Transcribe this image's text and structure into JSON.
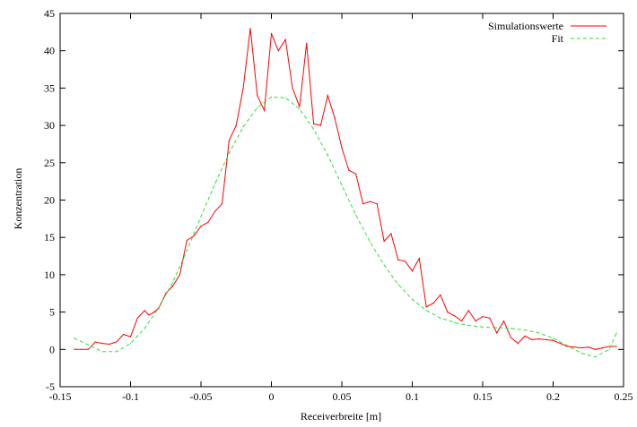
{
  "chart_data": {
    "type": "line",
    "title": "",
    "xlabel": "Receiverbreite [m]",
    "ylabel": "Konzentration",
    "xlim": [
      -0.15,
      0.25
    ],
    "ylim": [
      -5,
      45
    ],
    "xticks": [
      -0.15,
      -0.1,
      -0.05,
      0,
      0.05,
      0.1,
      0.15,
      0.2,
      0.25
    ],
    "xtick_labels": [
      "-0.15",
      "-0.1",
      "-0.05",
      "0",
      "0.05",
      "0.1",
      "0.15",
      "0.2",
      "0.25"
    ],
    "yticks": [
      -5,
      0,
      5,
      10,
      15,
      20,
      25,
      30,
      35,
      40,
      45
    ],
    "ytick_labels": [
      "-5",
      "0",
      "5",
      "10",
      "15",
      "20",
      "25",
      "30",
      "35",
      "40",
      "45"
    ],
    "grid": false,
    "legend_position": "top-right",
    "series": [
      {
        "name": "Simulationswerte",
        "color": "#ff0000",
        "style": "solid",
        "x": [
          -0.14,
          -0.135,
          -0.13,
          -0.125,
          -0.12,
          -0.115,
          -0.11,
          -0.105,
          -0.1,
          -0.095,
          -0.09,
          -0.087,
          -0.084,
          -0.08,
          -0.075,
          -0.07,
          -0.065,
          -0.06,
          -0.055,
          -0.05,
          -0.045,
          -0.04,
          -0.035,
          -0.03,
          -0.025,
          -0.02,
          -0.015,
          -0.01,
          -0.005,
          0,
          0.005,
          0.01,
          0.015,
          0.02,
          0.025,
          0.03,
          0.035,
          0.04,
          0.045,
          0.05,
          0.055,
          0.06,
          0.065,
          0.07,
          0.075,
          0.08,
          0.085,
          0.09,
          0.095,
          0.1,
          0.105,
          0.11,
          0.115,
          0.12,
          0.125,
          0.13,
          0.135,
          0.14,
          0.145,
          0.15,
          0.155,
          0.16,
          0.165,
          0.17,
          0.175,
          0.18,
          0.185,
          0.19,
          0.195,
          0.2,
          0.205,
          0.21,
          0.215,
          0.22,
          0.225,
          0.23,
          0.235,
          0.24,
          0.245
        ],
        "y": [
          0,
          0,
          0,
          1.0,
          0.8,
          0.7,
          1.0,
          2.0,
          1.7,
          4.2,
          5.2,
          4.6,
          4.9,
          5.5,
          7.5,
          8.5,
          10.0,
          14.6,
          15.2,
          16.5,
          17.0,
          18.5,
          19.5,
          28.0,
          30.0,
          35.0,
          43.0,
          34.0,
          32.0,
          42.3,
          40.0,
          41.5,
          35.0,
          32.5,
          41.0,
          30.2,
          30.0,
          34.0,
          31.0,
          27.0,
          24.0,
          23.5,
          19.5,
          19.8,
          19.5,
          14.5,
          15.5,
          12.0,
          11.8,
          10.5,
          12.2,
          5.7,
          6.2,
          7.3,
          5.0,
          4.5,
          3.8,
          5.2,
          3.8,
          4.4,
          4.2,
          2.2,
          3.8,
          1.6,
          0.8,
          1.8,
          1.3,
          1.4,
          1.3,
          1.2,
          0.8,
          0.4,
          0.3,
          0.2,
          0.3,
          0.0,
          0.2,
          0.4,
          0.4
        ]
      },
      {
        "name": "Fit",
        "color": "#33dd33",
        "style": "dashed",
        "x": [
          -0.14,
          -0.13,
          -0.12,
          -0.11,
          -0.1,
          -0.09,
          -0.08,
          -0.07,
          -0.06,
          -0.05,
          -0.04,
          -0.03,
          -0.02,
          -0.01,
          0,
          0.01,
          0.02,
          0.03,
          0.04,
          0.05,
          0.06,
          0.07,
          0.08,
          0.09,
          0.1,
          0.11,
          0.12,
          0.13,
          0.14,
          0.15,
          0.16,
          0.17,
          0.18,
          0.19,
          0.2,
          0.21,
          0.22,
          0.23,
          0.24,
          0.245
        ],
        "y": [
          1.5,
          0.6,
          -0.3,
          -0.3,
          0.8,
          2.8,
          5.6,
          9.0,
          13.2,
          17.8,
          22.2,
          26.3,
          29.8,
          32.4,
          33.8,
          33.7,
          32.2,
          29.5,
          26.0,
          22.0,
          18.0,
          14.4,
          11.3,
          8.7,
          6.7,
          5.2,
          4.2,
          3.6,
          3.2,
          3.0,
          2.9,
          2.8,
          2.6,
          2.2,
          1.5,
          0.5,
          -0.5,
          -1.0,
          0.0,
          2.2
        ]
      }
    ]
  }
}
